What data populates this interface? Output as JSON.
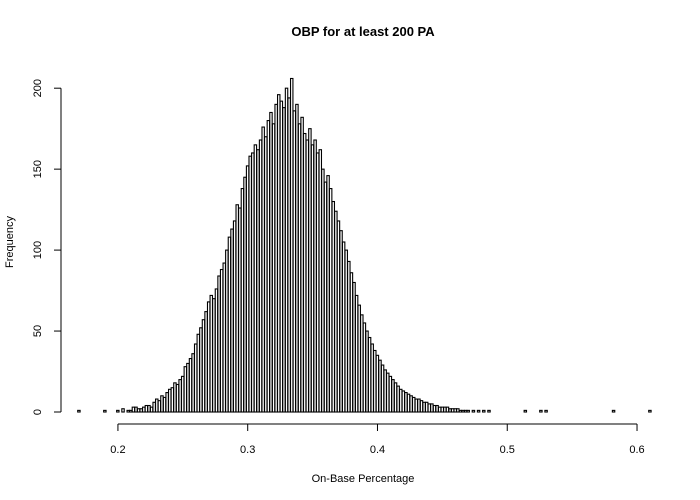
{
  "chart_data": {
    "type": "bar",
    "title": "OBP for at least 200 PA",
    "xlabel": "On-Base Percentage",
    "ylabel": "Frequency",
    "xlim": [
      0.17,
      0.61
    ],
    "ylim": [
      0,
      210
    ],
    "xticks": [
      0.2,
      0.3,
      0.4,
      0.5,
      0.6
    ],
    "xtick_labels": [
      "0.2",
      "0.3",
      "0.4",
      "0.5",
      "0.6"
    ],
    "yticks": [
      0,
      50,
      100,
      150,
      200
    ],
    "ytick_labels": [
      "0",
      "50",
      "100",
      "150",
      "200"
    ],
    "bin_width": 0.002,
    "x": [
      0.17,
      0.19,
      0.2,
      0.204,
      0.208,
      0.21,
      0.212,
      0.214,
      0.216,
      0.218,
      0.22,
      0.222,
      0.224,
      0.226,
      0.228,
      0.23,
      0.232,
      0.234,
      0.236,
      0.238,
      0.24,
      0.242,
      0.244,
      0.246,
      0.248,
      0.25,
      0.252,
      0.254,
      0.256,
      0.258,
      0.26,
      0.262,
      0.264,
      0.266,
      0.268,
      0.27,
      0.272,
      0.274,
      0.276,
      0.278,
      0.28,
      0.282,
      0.284,
      0.286,
      0.288,
      0.29,
      0.292,
      0.294,
      0.296,
      0.298,
      0.3,
      0.302,
      0.304,
      0.306,
      0.308,
      0.31,
      0.312,
      0.314,
      0.316,
      0.318,
      0.32,
      0.322,
      0.324,
      0.326,
      0.328,
      0.33,
      0.332,
      0.334,
      0.336,
      0.338,
      0.34,
      0.342,
      0.344,
      0.346,
      0.348,
      0.35,
      0.352,
      0.354,
      0.356,
      0.358,
      0.36,
      0.362,
      0.364,
      0.366,
      0.368,
      0.37,
      0.372,
      0.374,
      0.376,
      0.378,
      0.38,
      0.382,
      0.384,
      0.386,
      0.388,
      0.39,
      0.392,
      0.394,
      0.396,
      0.398,
      0.4,
      0.402,
      0.404,
      0.406,
      0.408,
      0.41,
      0.412,
      0.414,
      0.416,
      0.418,
      0.42,
      0.422,
      0.424,
      0.426,
      0.428,
      0.43,
      0.432,
      0.434,
      0.436,
      0.438,
      0.44,
      0.442,
      0.444,
      0.446,
      0.448,
      0.45,
      0.452,
      0.454,
      0.456,
      0.458,
      0.46,
      0.462,
      0.464,
      0.466,
      0.468,
      0.47,
      0.474,
      0.478,
      0.482,
      0.486,
      0.514,
      0.526,
      0.53,
      0.582,
      0.61
    ],
    "values": [
      1,
      1,
      1,
      2,
      1,
      1,
      3,
      3,
      2,
      2,
      3,
      4,
      4,
      3,
      6,
      8,
      7,
      10,
      9,
      12,
      14,
      15,
      18,
      17,
      20,
      22,
      28,
      30,
      33,
      36,
      42,
      48,
      52,
      57,
      62,
      68,
      72,
      70,
      76,
      84,
      88,
      92,
      100,
      108,
      113,
      118,
      128,
      126,
      138,
      145,
      152,
      158,
      160,
      165,
      162,
      168,
      176,
      170,
      180,
      185,
      178,
      190,
      196,
      192,
      188,
      200,
      194,
      206,
      186,
      190,
      178,
      182,
      172,
      168,
      175,
      165,
      168,
      160,
      162,
      150,
      142,
      146,
      138,
      130,
      124,
      118,
      112,
      105,
      100,
      93,
      86,
      80,
      72,
      66,
      60,
      55,
      50,
      46,
      42,
      38,
      35,
      32,
      29,
      26,
      24,
      22,
      20,
      18,
      16,
      14,
      13,
      12,
      11,
      10,
      9,
      8,
      8,
      7,
      6,
      6,
      5,
      5,
      4,
      4,
      3,
      3,
      3,
      3,
      2,
      2,
      2,
      2,
      1,
      1,
      1,
      1,
      1,
      1,
      1,
      1,
      1,
      1,
      1,
      1,
      1
    ],
    "grid": false,
    "legend": "none"
  }
}
